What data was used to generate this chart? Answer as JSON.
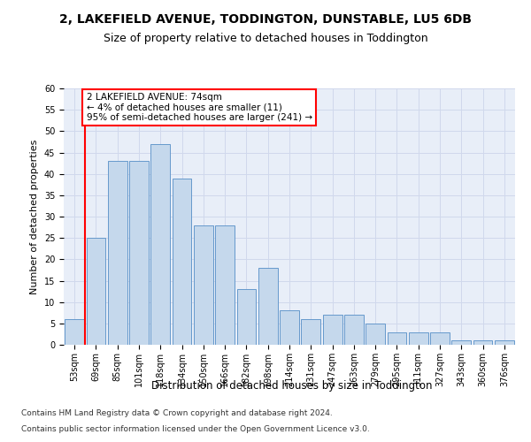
{
  "title": "2, LAKEFIELD AVENUE, TODDINGTON, DUNSTABLE, LU5 6DB",
  "subtitle": "Size of property relative to detached houses in Toddington",
  "xlabel": "Distribution of detached houses by size in Toddington",
  "ylabel": "Number of detached properties",
  "categories": [
    "53sqm",
    "69sqm",
    "85sqm",
    "101sqm",
    "118sqm",
    "134sqm",
    "150sqm",
    "166sqm",
    "182sqm",
    "198sqm",
    "214sqm",
    "231sqm",
    "247sqm",
    "263sqm",
    "279sqm",
    "295sqm",
    "311sqm",
    "327sqm",
    "343sqm",
    "360sqm",
    "376sqm"
  ],
  "values": [
    6,
    25,
    43,
    43,
    47,
    39,
    28,
    28,
    13,
    18,
    8,
    6,
    7,
    7,
    5,
    3,
    3,
    3,
    1,
    1,
    1
  ],
  "bar_color": "#c5d8ec",
  "bar_edge_color": "#6699cc",
  "vline_color": "red",
  "vline_x": 0.5,
  "annotation_text": "2 LAKEFIELD AVENUE: 74sqm\n← 4% of detached houses are smaller (11)\n95% of semi-detached houses are larger (241) →",
  "annotation_box_color": "white",
  "annotation_box_edge_color": "red",
  "ylim": [
    0,
    60
  ],
  "yticks": [
    0,
    5,
    10,
    15,
    20,
    25,
    30,
    35,
    40,
    45,
    50,
    55,
    60
  ],
  "grid_color": "#d0d8ec",
  "bg_color": "#e8eef8",
  "footer1": "Contains HM Land Registry data © Crown copyright and database right 2024.",
  "footer2": "Contains public sector information licensed under the Open Government Licence v3.0.",
  "title_fontsize": 10,
  "subtitle_fontsize": 9,
  "xlabel_fontsize": 8.5,
  "ylabel_fontsize": 8,
  "tick_fontsize": 7,
  "annotation_fontsize": 7.5,
  "footer_fontsize": 6.5
}
